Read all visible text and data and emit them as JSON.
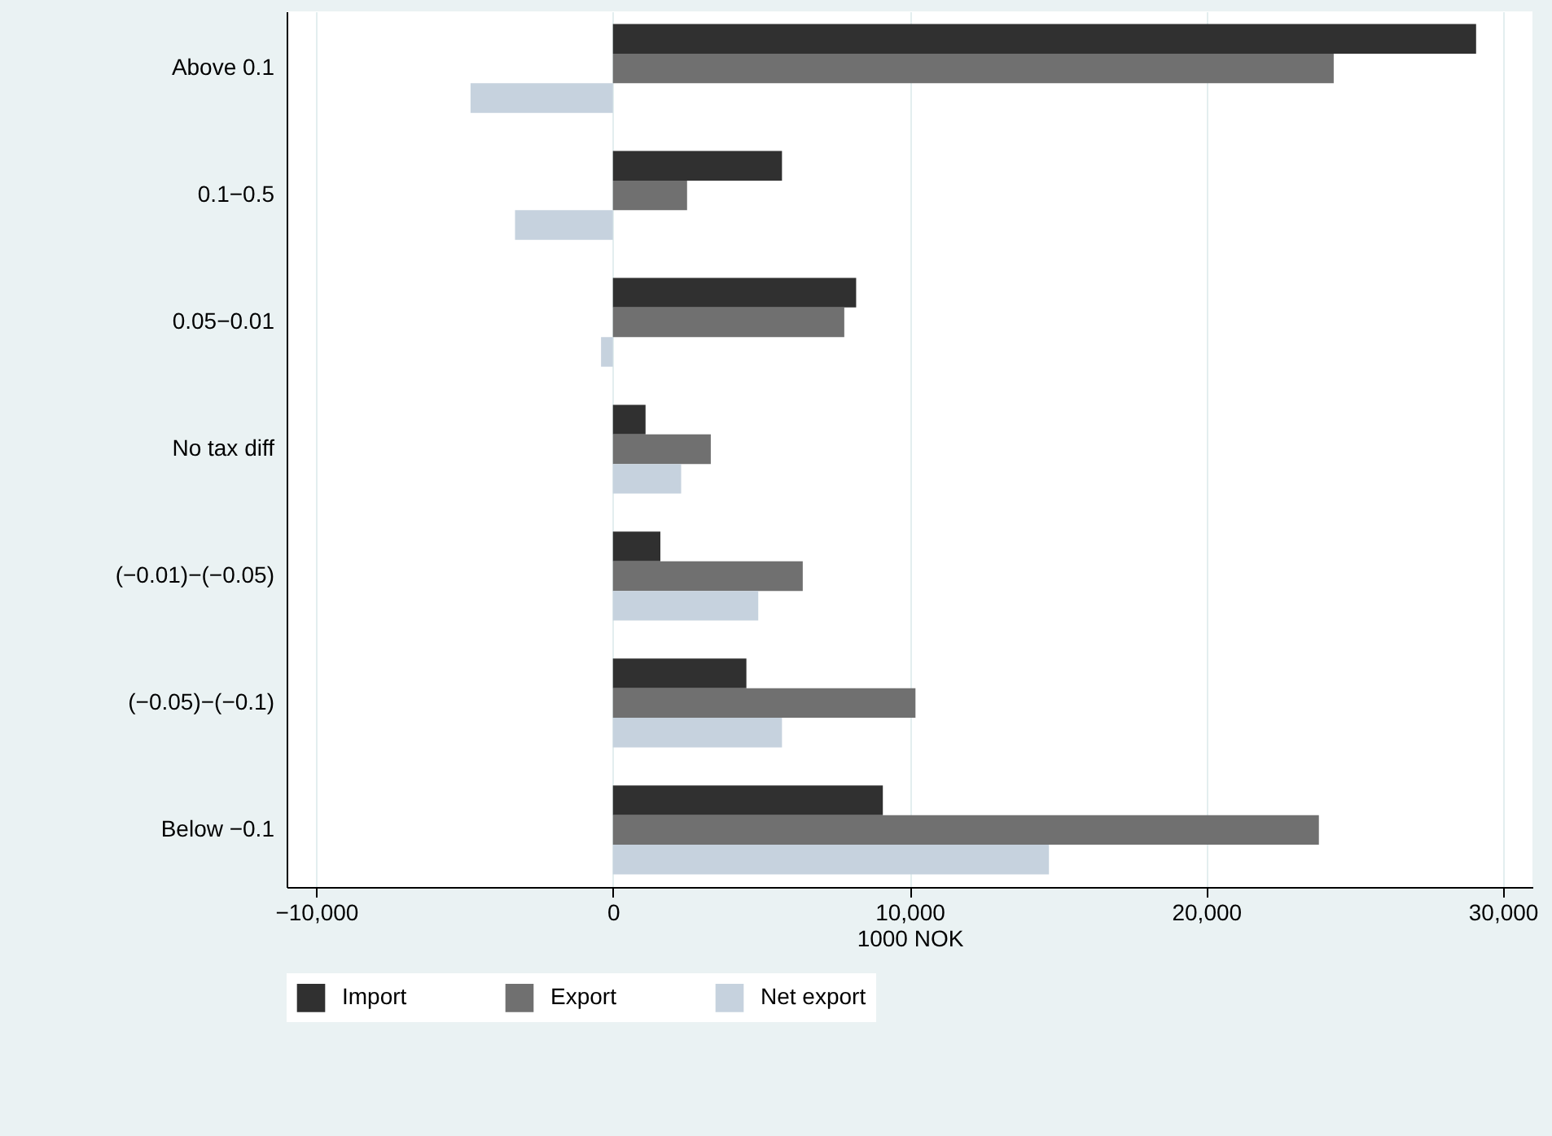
{
  "chart_data": {
    "type": "bar",
    "orientation": "horizontal",
    "xlabel": "1000 NOK",
    "categories": [
      "Above 0.1",
      "0.1−0.5",
      "0.05−0.01",
      "No tax diff",
      "(−0.01)−(−0.05)",
      "(−0.05)−(−0.1)",
      "Below −0.1"
    ],
    "series": [
      {
        "name": "Import",
        "color": "#303030",
        "values": [
          29100,
          5700,
          8200,
          1100,
          1600,
          4500,
          9100
        ]
      },
      {
        "name": "Export",
        "color": "#707070",
        "values": [
          24300,
          2500,
          7800,
          3300,
          6400,
          10200,
          23800
        ]
      },
      {
        "name": "Net export",
        "color": "#c6d2de",
        "values": [
          -4800,
          -3300,
          -400,
          2300,
          4900,
          5700,
          14700
        ]
      }
    ],
    "xlim": [
      -11000,
      31000
    ],
    "xticks": [
      {
        "value": -10000,
        "label": "−10,000"
      },
      {
        "value": 0,
        "label": "0"
      },
      {
        "value": 10000,
        "label": "10,000"
      },
      {
        "value": 20000,
        "label": "20,000"
      },
      {
        "value": 30000,
        "label": "30,000"
      }
    ],
    "grid": "x",
    "legend": "bottom"
  }
}
